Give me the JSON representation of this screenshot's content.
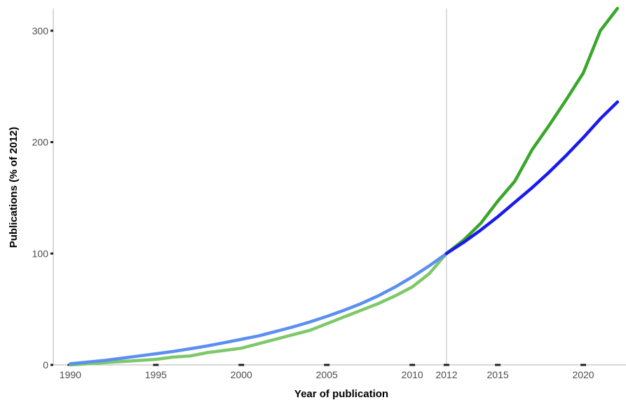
{
  "chart_data": {
    "type": "line",
    "title": "",
    "xlabel": "Year of publication",
    "ylabel": "Publications (% of 2012)",
    "xlim": [
      1989,
      2022.5
    ],
    "ylim": [
      0,
      320
    ],
    "x_ticks": [
      1990,
      1995,
      2000,
      2005,
      2010,
      2012,
      2015,
      2020
    ],
    "y_ticks": [
      0,
      100,
      200,
      300
    ],
    "reference_line_x": 2012,
    "grid": false,
    "legend": "none",
    "series": [
      {
        "color": "#7ec86a",
        "x": [
          1990,
          1991,
          1992,
          1993,
          1994,
          1995,
          1996,
          1997,
          1998,
          1999,
          2000,
          2001,
          2002,
          2003,
          2004,
          2005,
          2006,
          2007,
          2008,
          2009,
          2010,
          2011,
          2012
        ],
        "y": [
          0,
          1,
          2,
          3,
          4,
          5,
          7,
          8,
          11,
          13,
          15,
          19,
          23,
          27,
          31,
          37,
          43,
          49,
          55,
          62,
          70,
          82,
          100
        ]
      },
      {
        "color": "#5b8ff0",
        "x": [
          1990,
          1991,
          1992,
          1993,
          1994,
          1995,
          1996,
          1997,
          1998,
          1999,
          2000,
          2001,
          2002,
          2003,
          2004,
          2005,
          2006,
          2007,
          2008,
          2009,
          2010,
          2011,
          2012
        ],
        "y": [
          1,
          2.5,
          4,
          6,
          8,
          10,
          12,
          14.5,
          17,
          20,
          23,
          26,
          30,
          34,
          38.5,
          43.5,
          49,
          55,
          62,
          70,
          79,
          89,
          100
        ]
      },
      {
        "color": "#3aa62b",
        "x": [
          2012,
          2013,
          2014,
          2015,
          2016,
          2017,
          2018,
          2019,
          2020,
          2021,
          2022
        ],
        "y": [
          100,
          112,
          127,
          147,
          165,
          193,
          215,
          238,
          262,
          300,
          320
        ]
      },
      {
        "color": "#1a1aee",
        "x": [
          2012,
          2013,
          2014,
          2015,
          2016,
          2017,
          2018,
          2019,
          2020,
          2021,
          2022
        ],
        "y": [
          100,
          110,
          121,
          133,
          146,
          159,
          173,
          188,
          204,
          221,
          236
        ]
      }
    ]
  }
}
